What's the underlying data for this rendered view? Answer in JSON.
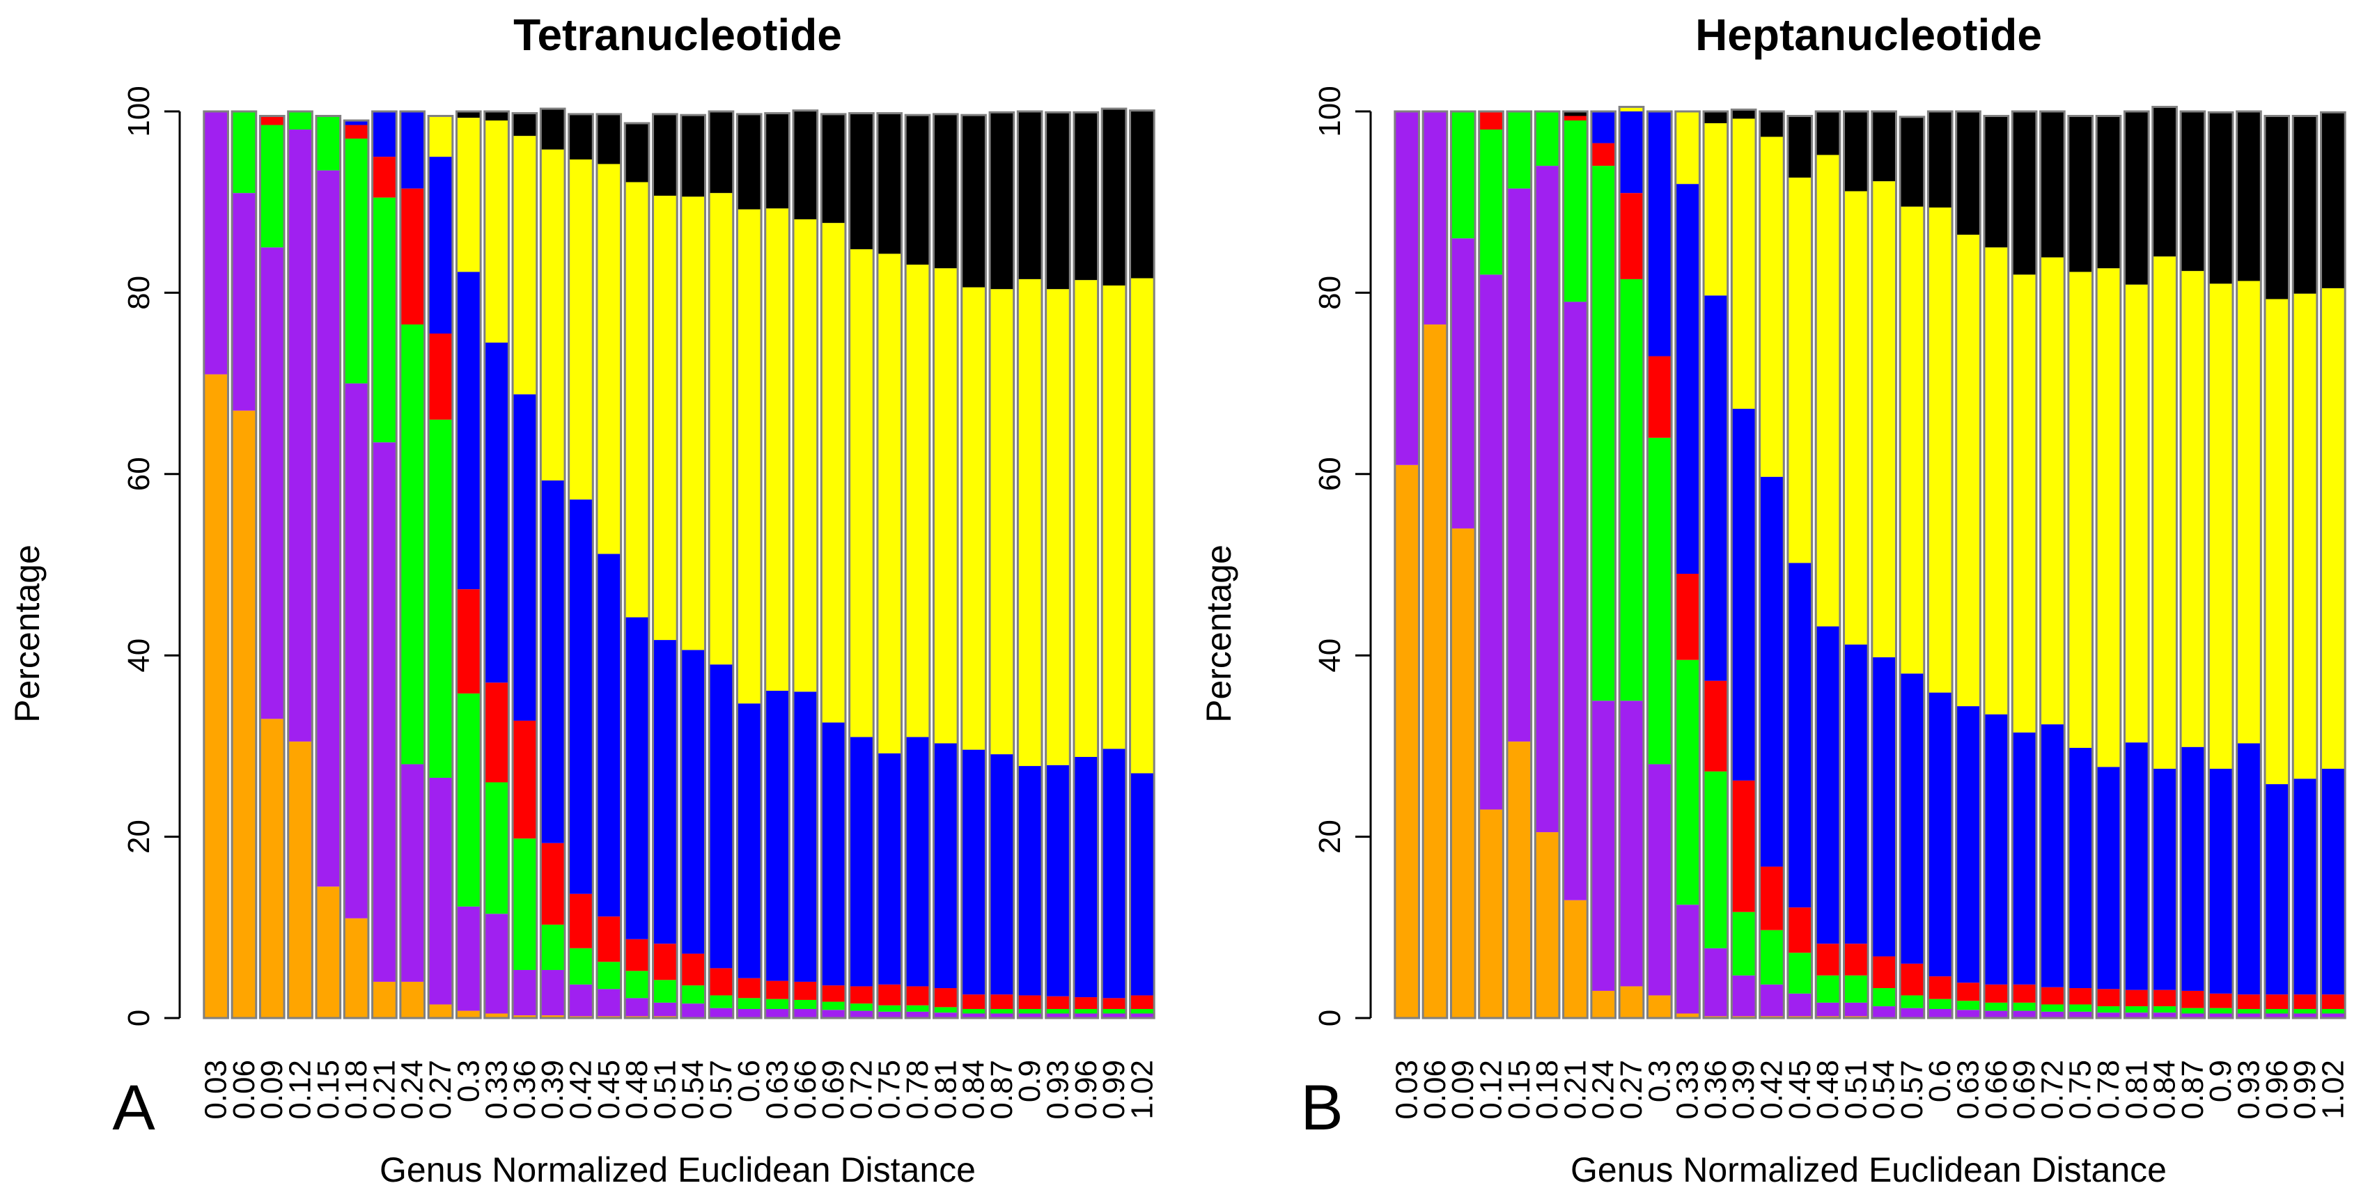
{
  "figure": {
    "panel_letters": [
      "A",
      "B"
    ]
  },
  "chart_data": [
    {
      "type": "bar",
      "stacked": true,
      "panel_letter": "A",
      "title": "Tetranucleotide",
      "xlabel": "Genus Normalized Euclidean Distance",
      "ylabel": "Percentage",
      "ylim": [
        0,
        100
      ],
      "yticks": [
        0,
        20,
        40,
        60,
        80,
        100
      ],
      "grid": false,
      "legend": "none",
      "categories": [
        "0.03",
        "0.06",
        "0.09",
        "0.12",
        "0.15",
        "0.18",
        "0.21",
        "0.24",
        "0.27",
        "0.3",
        "0.33",
        "0.36",
        "0.39",
        "0.42",
        "0.45",
        "0.48",
        "0.51",
        "0.54",
        "0.57",
        "0.6",
        "0.63",
        "0.66",
        "0.69",
        "0.72",
        "0.75",
        "0.78",
        "0.81",
        "0.84",
        "0.87",
        "0.9",
        "0.93",
        "0.96",
        "0.99",
        "1.02"
      ],
      "series": [
        {
          "color": "#FFA500",
          "values": [
            71,
            67,
            33,
            30.5,
            14.5,
            11,
            4,
            4,
            1.5,
            0.8,
            0.5,
            0.3,
            0.3,
            0.2,
            0.2,
            0.2,
            0.2,
            0.1,
            0.1,
            0.1,
            0.1,
            0.1,
            0.1,
            0.1,
            0.1,
            0.1,
            0.1,
            0.1,
            0.1,
            0.1,
            0.1,
            0.1,
            0.1,
            0.1
          ]
        },
        {
          "color": "#A020F0",
          "values": [
            29,
            24,
            52,
            67.5,
            79,
            59,
            59.5,
            24,
            25,
            11.5,
            11,
            5,
            5,
            3.5,
            3,
            2,
            1.5,
            1.5,
            1,
            0.9,
            0.9,
            0.9,
            0.8,
            0.7,
            0.6,
            0.6,
            0.5,
            0.4,
            0.4,
            0.4,
            0.4,
            0.4,
            0.4,
            0.4
          ]
        },
        {
          "color": "#00FF00",
          "values": [
            0,
            9,
            13.5,
            2,
            6,
            27,
            27,
            48.5,
            39.5,
            23.5,
            14.5,
            14.5,
            5,
            4,
            3,
            3,
            2.5,
            2,
            1.4,
            1.2,
            1.1,
            1,
            0.9,
            0.8,
            0.7,
            0.7,
            0.6,
            0.5,
            0.5,
            0.5,
            0.5,
            0.5,
            0.5,
            0.5
          ]
        },
        {
          "color": "#FF0000",
          "values": [
            0,
            0,
            1,
            0,
            0,
            1.5,
            4.5,
            15,
            9.5,
            11.5,
            11,
            13,
            9,
            6,
            5,
            3.5,
            4,
            3.5,
            3,
            2.2,
            2,
            2,
            1.8,
            1.9,
            2.3,
            2.1,
            2.1,
            1.6,
            1.6,
            1.5,
            1.4,
            1.3,
            1.2,
            1.5
          ]
        },
        {
          "color": "#0000FF",
          "values": [
            0,
            0,
            0,
            0,
            0,
            0.5,
            5,
            8.5,
            19.5,
            35,
            37.5,
            36,
            40,
            43.5,
            40,
            35.5,
            33.5,
            33.5,
            33.5,
            30.3,
            32,
            32,
            29,
            27.5,
            25.5,
            27.5,
            27,
            27,
            26.5,
            25.3,
            25.5,
            26.5,
            27.5,
            24.5
          ]
        },
        {
          "color": "#FFFF00",
          "values": [
            0,
            0,
            0,
            0,
            0,
            0,
            0,
            0,
            4.5,
            17,
            24.5,
            28.5,
            36.5,
            37.5,
            43,
            48,
            49,
            50,
            52,
            54.5,
            53.2,
            52.1,
            55.1,
            53.8,
            55.1,
            52.1,
            52.4,
            51,
            51.3,
            53.7,
            52.5,
            52.6,
            51.1,
            54.6
          ]
        },
        {
          "color": "#000000",
          "values": [
            0,
            0,
            0,
            0,
            0,
            0,
            0,
            0,
            0,
            0.7,
            1,
            2.5,
            4.5,
            5,
            5.5,
            6.5,
            9,
            9,
            9,
            10.5,
            10.5,
            12,
            12,
            15,
            15.5,
            16.5,
            17,
            19,
            19.5,
            18.5,
            19.5,
            18.5,
            19.5,
            18.5
          ]
        }
      ]
    },
    {
      "type": "bar",
      "stacked": true,
      "panel_letter": "B",
      "title": "Heptanucleotide",
      "xlabel": "Genus Normalized Euclidean Distance",
      "ylabel": "Percentage",
      "ylim": [
        0,
        100
      ],
      "yticks": [
        0,
        20,
        40,
        60,
        80,
        100
      ],
      "grid": false,
      "legend": "none",
      "categories": [
        "0.03",
        "0.06",
        "0.09",
        "0.12",
        "0.15",
        "0.18",
        "0.21",
        "0.24",
        "0.27",
        "0.3",
        "0.33",
        "0.36",
        "0.39",
        "0.42",
        "0.45",
        "0.48",
        "0.51",
        "0.54",
        "0.57",
        "0.6",
        "0.63",
        "0.66",
        "0.69",
        "0.72",
        "0.75",
        "0.78",
        "0.81",
        "0.84",
        "0.87",
        "0.9",
        "0.93",
        "0.96",
        "0.99",
        "1.02"
      ],
      "series": [
        {
          "color": "#FFA500",
          "values": [
            61,
            76.5,
            54,
            23,
            30.5,
            20.5,
            13,
            3,
            3.5,
            2.5,
            0.5,
            0.2,
            0.2,
            0.2,
            0.2,
            0.2,
            0.2,
            0.1,
            0.1,
            0.1,
            0.1,
            0.1,
            0.1,
            0.1,
            0.1,
            0.1,
            0.1,
            0.1,
            0.1,
            0.1,
            0.1,
            0.1,
            0.1,
            0.1
          ]
        },
        {
          "color": "#A020F0",
          "values": [
            39,
            23.5,
            32,
            59,
            61,
            73.5,
            66,
            32,
            31.5,
            25.5,
            12,
            7.5,
            4.5,
            3.5,
            2.5,
            1.5,
            1.5,
            1.2,
            1,
            0.9,
            0.8,
            0.7,
            0.7,
            0.6,
            0.6,
            0.5,
            0.5,
            0.5,
            0.4,
            0.4,
            0.4,
            0.4,
            0.4,
            0.4
          ]
        },
        {
          "color": "#00FF00",
          "values": [
            0,
            0,
            14,
            16,
            8.5,
            6,
            20,
            59,
            46.5,
            36,
            27,
            19.5,
            7,
            6,
            4.5,
            3,
            3,
            2,
            1.4,
            1.1,
            1,
            0.9,
            0.9,
            0.8,
            0.8,
            0.7,
            0.7,
            0.7,
            0.6,
            0.6,
            0.5,
            0.5,
            0.5,
            0.5
          ]
        },
        {
          "color": "#FF0000",
          "values": [
            0,
            0,
            0,
            2,
            0,
            0,
            0.5,
            2.5,
            9.5,
            9,
            9.5,
            10,
            14.5,
            7,
            5,
            3.5,
            3.5,
            3.5,
            3.5,
            2.5,
            2,
            2,
            2,
            1.9,
            1.8,
            1.9,
            1.8,
            1.8,
            1.9,
            1.6,
            1.6,
            1.6,
            1.6,
            1.6
          ]
        },
        {
          "color": "#0000FF",
          "values": [
            0,
            0,
            0,
            0,
            0,
            0,
            0,
            3.5,
            9,
            27,
            43,
            42.5,
            41,
            43,
            38,
            35,
            33,
            33,
            32,
            31.3,
            30.5,
            29.8,
            27.8,
            29,
            26.5,
            24.5,
            27.3,
            24.4,
            26.9,
            24.8,
            27.7,
            23.2,
            23.8,
            24.9
          ]
        },
        {
          "color": "#FFFF00",
          "values": [
            0,
            0,
            0,
            0,
            0,
            0,
            0,
            0,
            0.5,
            0,
            8,
            19,
            32,
            37.5,
            42.5,
            52,
            50,
            52.5,
            51.5,
            53.5,
            52,
            51.5,
            50.5,
            51.5,
            52.5,
            55,
            50.5,
            56.5,
            52.5,
            53.5,
            51,
            53.5,
            53.5,
            53
          ]
        },
        {
          "color": "#000000",
          "values": [
            0,
            0,
            0,
            0,
            0,
            0,
            0.5,
            0,
            0,
            0,
            0,
            1.3,
            1,
            2.8,
            6.8,
            4.8,
            8.8,
            7.7,
            9.9,
            10.6,
            13.6,
            14.5,
            18,
            16.1,
            17.2,
            16.8,
            19.1,
            16.5,
            17.6,
            18.9,
            18.7,
            20.2,
            19.6,
            19.4
          ]
        }
      ]
    }
  ]
}
